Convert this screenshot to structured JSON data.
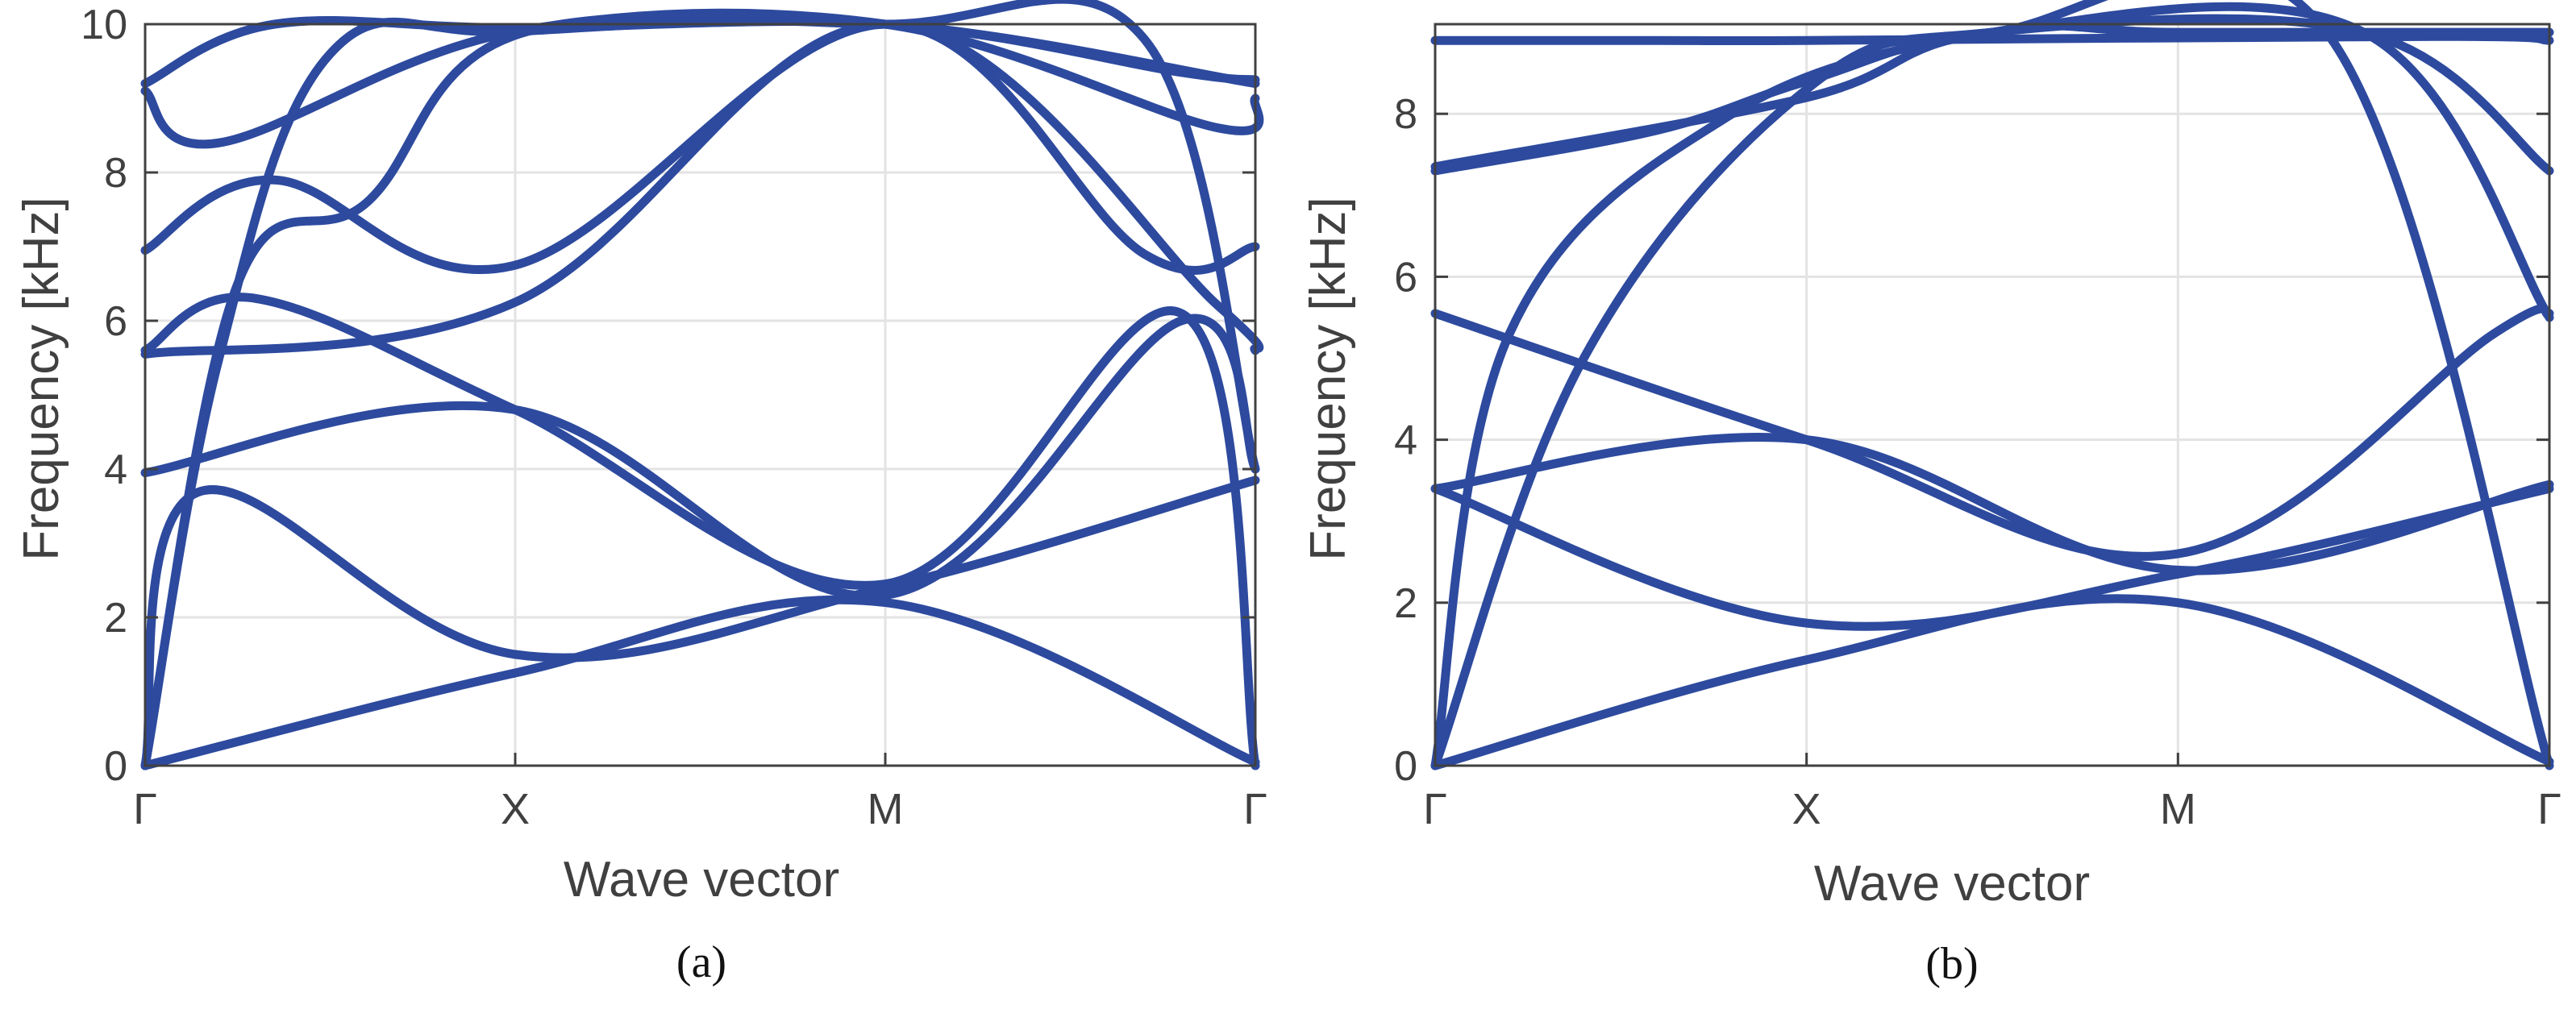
{
  "figure": {
    "colors": {
      "curve": "#2D4A9E",
      "grid": "#E3E3E3",
      "axis": "#404040",
      "text": "#404040"
    }
  },
  "chart_data": [
    {
      "type": "line",
      "caption": "(a)",
      "xlabel": "Wave vector",
      "ylabel": "Frequency [kHz]",
      "x_ticks": [
        "Γ",
        "X",
        "M",
        "Γ"
      ],
      "x_tick_positions": [
        0,
        1,
        2,
        3
      ],
      "xlim": [
        0,
        3
      ],
      "ylim": [
        0,
        10
      ],
      "y_ticks": [
        0,
        2,
        4,
        6,
        8,
        10
      ],
      "grid": true,
      "series": [
        {
          "x": [
            0,
            1,
            2,
            3
          ],
          "y": [
            0,
            1.25,
            2.2,
            0.05
          ]
        },
        {
          "x": [
            0,
            0.15,
            1,
            2,
            3
          ],
          "y": [
            0,
            3.7,
            1.5,
            2.4,
            3.85
          ]
        },
        {
          "x": [
            0,
            1,
            2,
            2.8,
            3
          ],
          "y": [
            3.95,
            4.8,
            2.3,
            6.0,
            4.0
          ]
        },
        {
          "x": [
            0,
            0.3,
            1,
            2,
            2.8,
            3
          ],
          "y": [
            5.6,
            6.3,
            4.8,
            2.45,
            6.1,
            0
          ]
        },
        {
          "x": [
            0,
            1,
            2,
            2.9,
            3
          ],
          "y": [
            5.55,
            6.25,
            10.0,
            6.2,
            5.6
          ]
        },
        {
          "x": [
            0,
            0.35,
            1,
            2,
            2.7,
            3
          ],
          "y": [
            6.95,
            7.9,
            6.75,
            10.0,
            6.9,
            7.0
          ]
        },
        {
          "x": [
            0,
            0.2,
            1,
            2,
            2.9,
            3
          ],
          "y": [
            9.1,
            8.4,
            9.9,
            10.0,
            8.6,
            9.0
          ]
        },
        {
          "x": [
            0,
            0.35,
            1,
            2,
            2.8,
            3
          ],
          "y": [
            9.2,
            10.0,
            9.95,
            10.0,
            9.35,
            9.25
          ]
        },
        {
          "x": [
            0,
            0.2,
            0.5,
            1,
            2,
            3
          ],
          "y": [
            0,
            5.5,
            9.6,
            9.9,
            10.0,
            9.2
          ]
        },
        {
          "x": [
            0,
            0.25,
            0.6,
            1,
            2,
            2.7,
            3
          ],
          "y": [
            0,
            6.5,
            7.6,
            9.85,
            10.0,
            9.8,
            4.0
          ]
        }
      ]
    },
    {
      "type": "line",
      "caption": "(b)",
      "xlabel": "Wave vector",
      "ylabel": "Frequency [kHz]",
      "x_ticks": [
        "Γ",
        "X",
        "M",
        "Γ"
      ],
      "x_tick_positions": [
        0,
        1,
        2,
        3
      ],
      "xlim": [
        0,
        3
      ],
      "ylim": [
        0,
        9.1
      ],
      "y_ticks": [
        0,
        2,
        4,
        6,
        8
      ],
      "grid": true,
      "series": [
        {
          "x": [
            0,
            1,
            2,
            3
          ],
          "y": [
            0,
            1.3,
            2.0,
            0.05
          ]
        },
        {
          "x": [
            0,
            1,
            2,
            3
          ],
          "y": [
            3.4,
            1.75,
            2.35,
            3.4
          ]
        },
        {
          "x": [
            0,
            1,
            2,
            3
          ],
          "y": [
            3.4,
            4.0,
            2.4,
            3.45
          ]
        },
        {
          "x": [
            0,
            1,
            2,
            2.85,
            3
          ],
          "y": [
            5.55,
            4.0,
            2.6,
            5.3,
            5.55
          ]
        },
        {
          "x": [
            0,
            0.2,
            0.8,
            1.5,
            2,
            3
          ],
          "y": [
            0,
            5.3,
            8.0,
            9.0,
            9.0,
            9.0
          ]
        },
        {
          "x": [
            0,
            0.4,
            1,
            1.5,
            2.5,
            3
          ],
          "y": [
            0,
            5.0,
            8.3,
            9.0,
            9.0,
            7.3
          ]
        },
        {
          "x": [
            0,
            0.6,
            1,
            1.5,
            2.4,
            3
          ],
          "y": [
            7.3,
            7.8,
            8.4,
            9.0,
            9.0,
            0
          ]
        },
        {
          "x": [
            0,
            1,
            1.5,
            2.5,
            3
          ],
          "y": [
            7.35,
            8.2,
            9.0,
            9.0,
            5.5
          ]
        },
        {
          "x": [
            0,
            0.6,
            1,
            2.7,
            3
          ],
          "y": [
            8.9,
            8.9,
            8.9,
            8.95,
            8.9
          ]
        }
      ]
    }
  ]
}
